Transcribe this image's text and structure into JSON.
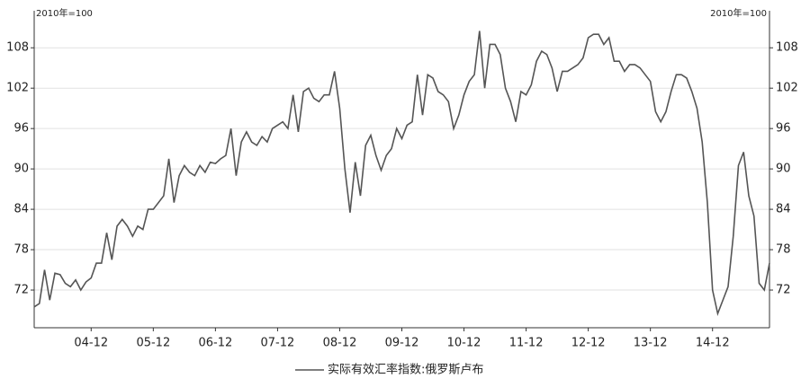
{
  "chart_data": {
    "type": "line",
    "y_label": "2010年=100",
    "y2_label": "2010年=100",
    "categories": [
      null,
      null,
      null,
      null,
      null,
      null,
      null,
      null,
      null,
      null,
      null,
      "04-12",
      null,
      null,
      null,
      null,
      null,
      null,
      null,
      null,
      null,
      null,
      null,
      "05-12",
      null,
      null,
      null,
      null,
      null,
      null,
      null,
      null,
      null,
      null,
      null,
      "06-12",
      null,
      null,
      null,
      null,
      null,
      null,
      null,
      null,
      null,
      null,
      null,
      "07-12",
      null,
      null,
      null,
      null,
      null,
      null,
      null,
      null,
      null,
      null,
      null,
      "08-12",
      null,
      null,
      null,
      null,
      null,
      null,
      null,
      null,
      null,
      null,
      null,
      "09-12",
      null,
      null,
      null,
      null,
      null,
      null,
      null,
      null,
      null,
      null,
      null,
      "10-12",
      null,
      null,
      null,
      null,
      null,
      null,
      null,
      null,
      null,
      null,
      null,
      "11-12",
      null,
      null,
      null,
      null,
      null,
      null,
      null,
      null,
      null,
      null,
      null,
      "12-12",
      null,
      null,
      null,
      null,
      null,
      null,
      null,
      null,
      null,
      null,
      null,
      "13-12",
      null,
      null,
      null,
      null,
      null,
      null,
      null,
      null,
      null,
      null,
      null,
      "14-12",
      null,
      null,
      null,
      null,
      null,
      null,
      null,
      null,
      null,
      null,
      null
    ],
    "series": [
      {
        "name": "实际有效汇率指数:俄罗斯卢布",
        "color": "#555555",
        "values": [
          69.5,
          70,
          75,
          70.5,
          74.5,
          74.3,
          73,
          72.5,
          73.5,
          72,
          73.2,
          73.8,
          76,
          76,
          80.5,
          76.5,
          81.5,
          82.5,
          81.5,
          80,
          81.5,
          81,
          84,
          84,
          85,
          86,
          91.5,
          85,
          89,
          90.5,
          89.5,
          89,
          90.5,
          89.5,
          91,
          90.8,
          91.5,
          92,
          96,
          89,
          94,
          95.5,
          94,
          93.5,
          94.8,
          94,
          96,
          96.5,
          97,
          96,
          101,
          95.5,
          101.5,
          102,
          100.5,
          100,
          101,
          101,
          104.5,
          99,
          90,
          83.5,
          91,
          86,
          93.5,
          95,
          92,
          89.8,
          92,
          93,
          96,
          94.5,
          96.5,
          97,
          104,
          98,
          104,
          103.5,
          101.5,
          101,
          100,
          96,
          98,
          101,
          103,
          104,
          110.5,
          102,
          108.5,
          108.5,
          107,
          102,
          100,
          97,
          101.5,
          101,
          102.5,
          106,
          107.5,
          107,
          105,
          101.5,
          104.5,
          104.5,
          105,
          105.5,
          106.5,
          109.5,
          110,
          110,
          108.5,
          109.5,
          106,
          106,
          104.5,
          105.5,
          105.5,
          105,
          104,
          103,
          98.5,
          97,
          98.5,
          101.5,
          104,
          104,
          103.5,
          101.5,
          99,
          94,
          85,
          72,
          68.5,
          70.5,
          72.5,
          80,
          90.5,
          92.5,
          86,
          83,
          73,
          72,
          76
        ]
      }
    ],
    "ylim": [
      66.4,
      113.5
    ],
    "yticks": [
      72,
      78,
      84,
      90,
      96,
      102,
      108
    ],
    "y2lim": [
      66.4,
      113.5
    ],
    "y2ticks": [
      72,
      78,
      84,
      90,
      96,
      102,
      108
    ],
    "grid": true
  }
}
